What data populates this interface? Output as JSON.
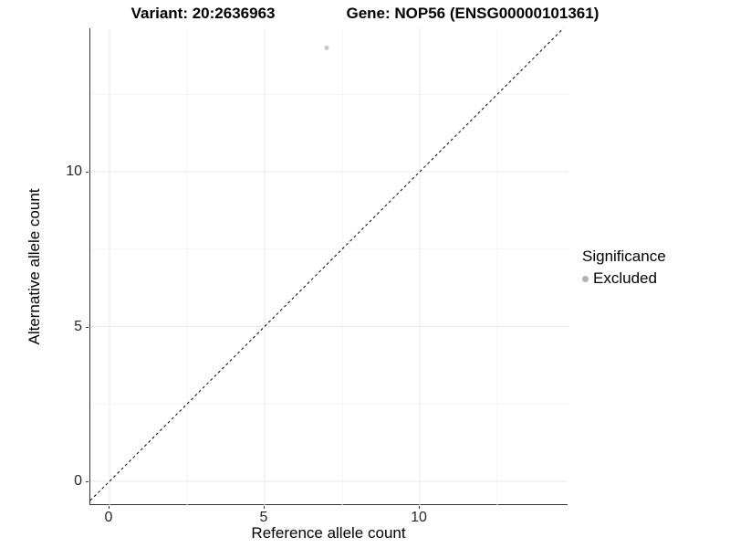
{
  "chart_data": {
    "type": "scatter",
    "titles": {
      "variant": "Variant: 20:2636963",
      "gene": "Gene: NOP56 (ENSG00000101361)"
    },
    "xlabel": "Reference allele count",
    "ylabel": "Alternative allele count",
    "x_major_ticks": [
      0,
      5,
      10
    ],
    "y_major_ticks": [
      0,
      5,
      10
    ],
    "x_minor_ticks": [
      2.5,
      7.5,
      12.5
    ],
    "y_minor_ticks": [
      2.5,
      7.5,
      12.5
    ],
    "xlim": [
      -0.62,
      14.79
    ],
    "ylim": [
      -0.77,
      14.63
    ],
    "grid": true,
    "points": [
      {
        "x": 7,
        "y": 14,
        "series": "Excluded"
      }
    ],
    "reference_line": {
      "slope": 1,
      "intercept": 0,
      "style": "dashed",
      "color": "#000000"
    },
    "legend": {
      "position": "right",
      "title": "Significance",
      "items": [
        {
          "label": "Excluded",
          "color": "#b2b2b2"
        }
      ]
    },
    "colors": {
      "point": "#c6c6c6",
      "grid_major": "#e9e9e9",
      "grid_minor": "#f4f4f4",
      "axis_line": "#333333",
      "tick_text": "#262626"
    }
  }
}
